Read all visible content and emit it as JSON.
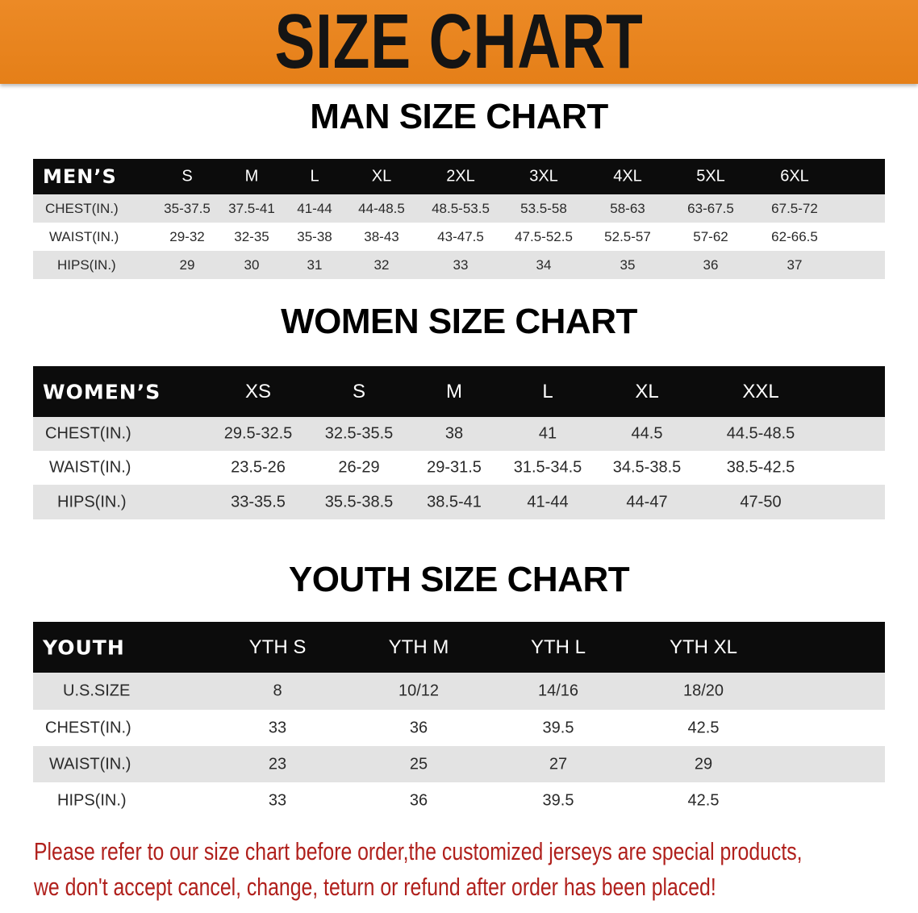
{
  "banner": {
    "title": "SIZE CHART",
    "color": "#e8841e"
  },
  "tables": [
    {
      "title": "MAN SIZE CHART",
      "header_label": "MEN’S",
      "sizes": [
        "S",
        "M",
        "L",
        "XL",
        "2XL",
        "3XL",
        "4XL",
        "5XL",
        "6XL"
      ],
      "rows": [
        {
          "label": "CHEST(IN.)",
          "values": [
            "35-37.5",
            "37.5-41",
            "41-44",
            "44-48.5",
            "48.5-53.5",
            "53.5-58",
            "58-63",
            "63-67.5",
            "67.5-72"
          ]
        },
        {
          "label": "WAIST(IN.)",
          "values": [
            "29-32",
            "32-35",
            "35-38",
            "38-43",
            "43-47.5",
            "47.5-52.5",
            "52.5-57",
            "57-62",
            "62-66.5"
          ]
        },
        {
          "label": "HIPS(IN.)",
          "values": [
            "29",
            "30",
            "31",
            "32",
            "33",
            "34",
            "35",
            "36",
            "37"
          ]
        }
      ]
    },
    {
      "title": "WOMEN SIZE CHART",
      "header_label": "WOMEN’S",
      "sizes": [
        "XS",
        "S",
        "M",
        "L",
        "XL",
        "XXL"
      ],
      "rows": [
        {
          "label": "CHEST(IN.)",
          "values": [
            "29.5-32.5",
            "32.5-35.5",
            "38",
            "41",
            "44.5",
            "44.5-48.5"
          ]
        },
        {
          "label": "WAIST(IN.)",
          "values": [
            "23.5-26",
            "26-29",
            "29-31.5",
            "31.5-34.5",
            "34.5-38.5",
            "38.5-42.5"
          ]
        },
        {
          "label": "HIPS(IN.)",
          "values": [
            "33-35.5",
            "35.5-38.5",
            "38.5-41",
            "41-44",
            "44-47",
            "47-50"
          ]
        }
      ]
    },
    {
      "title": "YOUTH SIZE CHART",
      "header_label": "YOUTH",
      "sizes": [
        "YTH S",
        "YTH M",
        "YTH L",
        "YTH XL"
      ],
      "rows": [
        {
          "label": "U.S.SIZE",
          "values": [
            "8",
            "10/12",
            "14/16",
            "18/20"
          ]
        },
        {
          "label": "CHEST(IN.)",
          "values": [
            "33",
            "36",
            "39.5",
            "42.5"
          ]
        },
        {
          "label": "WAIST(IN.)",
          "values": [
            "23",
            "25",
            "27",
            "29"
          ]
        },
        {
          "label": "HIPS(IN.)",
          "values": [
            "33",
            "36",
            "39.5",
            "42.5"
          ]
        }
      ]
    }
  ],
  "note": {
    "line1": "Please refer to our size chart before order,the customized jerseys are special products,",
    "line2": "we don't accept cancel, change, teturn or refund after order has been placed!",
    "color": "#b0201c"
  }
}
